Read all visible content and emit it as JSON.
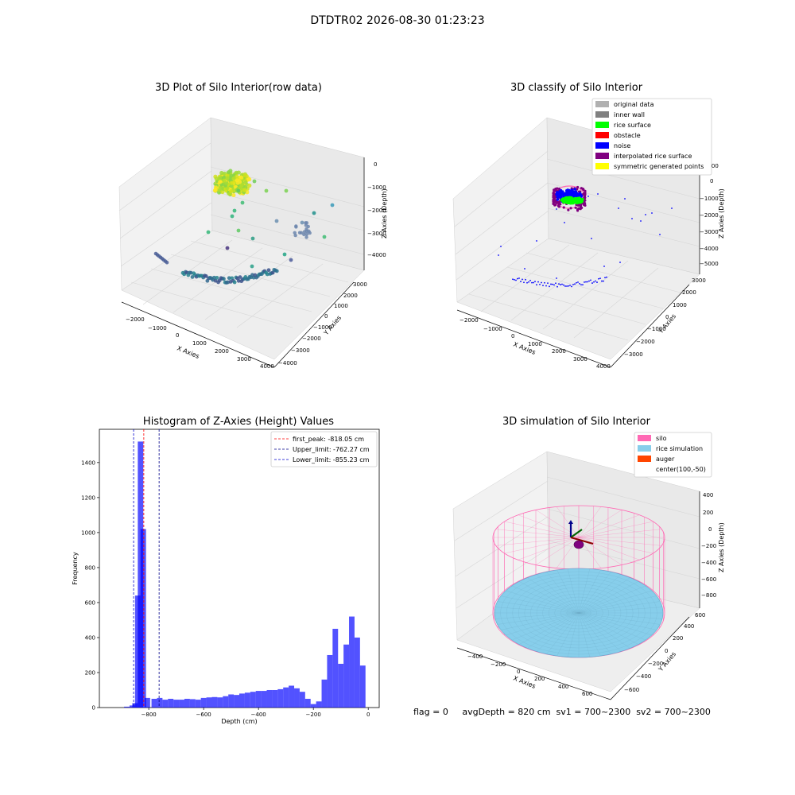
{
  "suptitle": "DTDTR02 2026-08-30 01:23:23",
  "panels": {
    "raw": {
      "title": "3D Plot of Silo Interior(row data)",
      "xlabel": "X Axies",
      "ylabel": "Y Axies",
      "zlabel": "Z Axies (Depth)",
      "xticks": [
        "−2000",
        "−1000",
        "0",
        "1000",
        "2000",
        "3000",
        "4000"
      ],
      "yticks": [
        "−4000",
        "−3000",
        "−2000",
        "−1000",
        "0",
        "1000",
        "2000",
        "3000"
      ],
      "zticks": [
        "0",
        "−1000",
        "−2000",
        "−3000",
        "−4000"
      ]
    },
    "classify": {
      "title": "3D classify of Silo Interior",
      "xlabel": "X Axies",
      "ylabel": "Y Axies",
      "zlabel": "Z Axies (Depth)",
      "xticks": [
        "−2000",
        "−1000",
        "0",
        "1000",
        "2000",
        "3000",
        "4000"
      ],
      "yticks": [
        "−3000",
        "−2000",
        "−1000",
        "0",
        "1000",
        "2000",
        "3000"
      ],
      "zticks": [
        "1000",
        "0",
        "−1000",
        "−2000",
        "−3000",
        "−4000",
        "−5000"
      ],
      "legend": [
        {
          "label": "original data",
          "color": "#b0b0b0"
        },
        {
          "label": "inner wall",
          "color": "#808080"
        },
        {
          "label": "rice surface",
          "color": "#00ff00"
        },
        {
          "label": "obstacle",
          "color": "#ff0000"
        },
        {
          "label": "noise",
          "color": "#0000ff"
        },
        {
          "label": "interpolated rice surface",
          "color": "#800080"
        },
        {
          "label": "symmetric generated points",
          "color": "#ffff00"
        }
      ]
    },
    "simulation": {
      "title": "3D simulation of Silo Interior",
      "xlabel": "X Axies",
      "ylabel": "Y Axies",
      "zlabel": "Z Axies (Depth)",
      "xticks": [
        "−400",
        "−200",
        "0",
        "200",
        "400",
        "600"
      ],
      "yticks": [
        "−600",
        "−400",
        "−200",
        "0",
        "200",
        "400",
        "600"
      ],
      "zticks": [
        "400",
        "200",
        "0",
        "−200",
        "−400",
        "−600",
        "−800"
      ],
      "legend": [
        {
          "label": "silo",
          "color": "#ff69b4"
        },
        {
          "label": "rice simulation",
          "color": "#87ceeb"
        },
        {
          "label": "auger",
          "color": "#ff4500"
        },
        {
          "label": "center(100,-50)",
          "color": "none"
        }
      ]
    }
  },
  "chart_data": {
    "type": "bar",
    "title": "Histogram of Z-Axies (Height) Values",
    "xlabel": "Depth (cm)",
    "ylabel": "Frequency",
    "xlim": [
      -980,
      40
    ],
    "ylim": [
      0,
      1590
    ],
    "xticks": [
      -800,
      -600,
      -400,
      -200,
      0
    ],
    "yticks": [
      0,
      200,
      400,
      600,
      800,
      1000,
      1200,
      1400
    ],
    "bin_width": 20,
    "bar_color": "#0000ff",
    "bins": [
      {
        "x": -880,
        "v": 5
      },
      {
        "x": -860,
        "v": 12
      },
      {
        "x": -850,
        "v": 25
      },
      {
        "x": -840,
        "v": 640
      },
      {
        "x": -830,
        "v": 1520
      },
      {
        "x": -820,
        "v": 1020
      },
      {
        "x": -805,
        "v": 55
      },
      {
        "x": -780,
        "v": 50
      },
      {
        "x": -760,
        "v": 55
      },
      {
        "x": -740,
        "v": 45
      },
      {
        "x": -720,
        "v": 50
      },
      {
        "x": -700,
        "v": 45
      },
      {
        "x": -680,
        "v": 45
      },
      {
        "x": -660,
        "v": 50
      },
      {
        "x": -640,
        "v": 48
      },
      {
        "x": -620,
        "v": 45
      },
      {
        "x": -600,
        "v": 55
      },
      {
        "x": -580,
        "v": 58
      },
      {
        "x": -560,
        "v": 60
      },
      {
        "x": -540,
        "v": 58
      },
      {
        "x": -520,
        "v": 65
      },
      {
        "x": -500,
        "v": 75
      },
      {
        "x": -480,
        "v": 72
      },
      {
        "x": -460,
        "v": 80
      },
      {
        "x": -440,
        "v": 85
      },
      {
        "x": -420,
        "v": 90
      },
      {
        "x": -400,
        "v": 95
      },
      {
        "x": -380,
        "v": 95
      },
      {
        "x": -360,
        "v": 100
      },
      {
        "x": -340,
        "v": 100
      },
      {
        "x": -320,
        "v": 105
      },
      {
        "x": -300,
        "v": 115
      },
      {
        "x": -280,
        "v": 125
      },
      {
        "x": -260,
        "v": 110
      },
      {
        "x": -240,
        "v": 90
      },
      {
        "x": -220,
        "v": 50
      },
      {
        "x": -200,
        "v": 20
      },
      {
        "x": -180,
        "v": 35
      },
      {
        "x": -160,
        "v": 160
      },
      {
        "x": -140,
        "v": 300
      },
      {
        "x": -120,
        "v": 450
      },
      {
        "x": -100,
        "v": 250
      },
      {
        "x": -80,
        "v": 360
      },
      {
        "x": -60,
        "v": 520
      },
      {
        "x": -40,
        "v": 400
      },
      {
        "x": -20,
        "v": 240
      }
    ],
    "vlines": [
      {
        "label": "first_peak: -818.05 cm",
        "x": -818.05,
        "color": "#ff0000"
      },
      {
        "label": "Upper_limit: -762.27 cm",
        "x": -762.27,
        "color": "#00008b"
      },
      {
        "label": "Lower_limit: -855.23 cm",
        "x": -855.23,
        "color": "#0000cd"
      }
    ]
  },
  "footer": {
    "text": "flag = 0     avgDepth = 820 cm  sv1 = 700~2300  sv2 = 700~2300"
  }
}
